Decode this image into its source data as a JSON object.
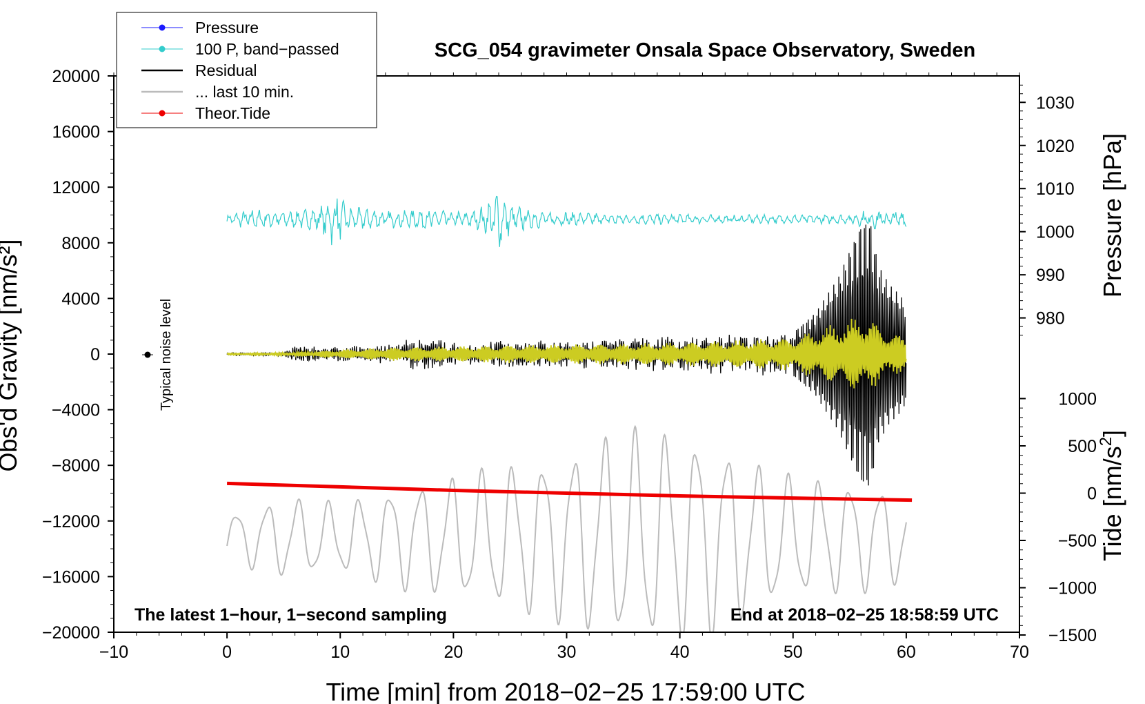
{
  "chart_data": {
    "type": "line",
    "title": "SCG_054 gravimeter Onsala Space Observatory, Sweden",
    "xlabel": "Time [min] from 2018−02−25 17:59:00 UTC",
    "ylabel_left": "Obs'd Gravity [nm/s²]",
    "ylabel_right_pressure": "Pressure [hPa]",
    "ylabel_right_tide_text": "Tide [nm/s",
    "ylabel_right_tide_sup": "2",
    "ylabel_right_tide_close": "]",
    "xlim": [
      -10,
      70
    ],
    "ylim": [
      -20000,
      20000
    ],
    "x_ticks": [
      {
        "value": -10,
        "label": "−10"
      },
      {
        "value": 0,
        "label": "0"
      },
      {
        "value": 10,
        "label": "10"
      },
      {
        "value": 20,
        "label": "20"
      },
      {
        "value": 30,
        "label": "30"
      },
      {
        "value": 40,
        "label": "40"
      },
      {
        "value": 50,
        "label": "50"
      },
      {
        "value": 60,
        "label": "60"
      },
      {
        "value": 70,
        "label": "70"
      }
    ],
    "y_ticks": [
      {
        "value": 20000,
        "label": "20000"
      },
      {
        "value": 16000,
        "label": "16000"
      },
      {
        "value": 12000,
        "label": "12000"
      },
      {
        "value": 8000,
        "label": "8000"
      },
      {
        "value": 4000,
        "label": "4000"
      },
      {
        "value": 0,
        "label": "0"
      },
      {
        "value": -4000,
        "label": "−4000"
      },
      {
        "value": -8000,
        "label": "−8000"
      },
      {
        "value": -12000,
        "label": "−12000"
      },
      {
        "value": -16000,
        "label": "−16000"
      },
      {
        "value": -20000,
        "label": "−20000"
      }
    ],
    "pressure_axis": {
      "note": "right axis, hPa; 1000 hPa aligned with ~8800 nm/s2, 10 hPa = ~3100 nm/s2",
      "ticks": [
        {
          "value": 1030,
          "label": "1030"
        },
        {
          "value": 1020,
          "label": "1020"
        },
        {
          "value": 1010,
          "label": "1010"
        },
        {
          "value": 1000,
          "label": "1000"
        },
        {
          "value": 990,
          "label": "990"
        },
        {
          "value": 980,
          "label": "980"
        }
      ]
    },
    "tide_axis": {
      "note": "right axis, nm/s2; 0 aligned with ~-10000 nm/s2, 500 = ~3400 nm/s2",
      "ticks": [
        {
          "value": 1000,
          "label": "1000"
        },
        {
          "value": 500,
          "label": "500"
        },
        {
          "value": 0,
          "label": "0"
        },
        {
          "value": -500,
          "label": "−500"
        },
        {
          "value": -1000,
          "label": "−1000"
        },
        {
          "value": -1500,
          "label": "−1500"
        }
      ]
    },
    "legend": {
      "position": "top-left",
      "entries": [
        {
          "label": "Pressure",
          "color": "#1a1aff",
          "marker": "dot"
        },
        {
          "label": "100 P, band−passed",
          "color": "#33cccc",
          "marker": "dot"
        },
        {
          "label": "Residual",
          "color": "#000000",
          "marker": "line"
        },
        {
          "label": "... last 10 min.",
          "color": "#bbbbbb",
          "marker": "line"
        },
        {
          "label": "Theor.Tide",
          "color": "#ee0000",
          "marker": "dot"
        }
      ]
    },
    "annotations": {
      "noise_label": "Typical noise level",
      "noise_point": {
        "x": -7,
        "y": 0
      },
      "bottom_left": "The latest 1−hour, 1−second sampling",
      "bottom_right": "End at 2018−02−25 18:58:59 UTC"
    },
    "series": [
      {
        "name": "100 P, band-passed",
        "color": "#33cccc",
        "approximate": true,
        "baseline_nms2": 9700,
        "envelope_x": [
          0,
          2,
          4,
          6,
          8,
          9,
          9.5,
          10,
          11,
          14,
          16,
          18,
          20,
          22,
          23,
          24,
          25,
          28,
          35,
          45,
          55,
          57,
          60
        ],
        "envelope_amp": [
          350,
          800,
          700,
          650,
          900,
          1600,
          2600,
          1600,
          900,
          700,
          650,
          900,
          550,
          700,
          1300,
          2500,
          1100,
          600,
          450,
          320,
          380,
          800,
          850
        ]
      },
      {
        "name": "Residual",
        "color": "#000000",
        "approximate": true,
        "envelope_x": [
          0,
          5,
          6,
          10,
          15,
          16,
          17,
          20,
          25,
          30,
          35,
          40,
          45,
          50,
          52,
          54,
          55,
          56,
          56.8,
          57.5,
          58.5,
          59.5,
          60
        ],
        "envelope_amp": [
          100,
          120,
          600,
          550,
          700,
          1200,
          1300,
          900,
          1000,
          1000,
          1200,
          1300,
          1500,
          1600,
          3000,
          5500,
          7500,
          9500,
          9800,
          6500,
          5000,
          4200,
          3500
        ]
      },
      {
        "name": "Residual (yellow overlay)",
        "color": "#cccc22",
        "approximate": true,
        "envelope_x": [
          0,
          5,
          10,
          15,
          20,
          25,
          30,
          35,
          40,
          45,
          50,
          52,
          55,
          56,
          57,
          58,
          60
        ],
        "envelope_amp": [
          50,
          100,
          300,
          500,
          550,
          650,
          700,
          750,
          850,
          1000,
          1200,
          1800,
          2500,
          2900,
          2500,
          1800,
          1200
        ]
      },
      {
        "name": "... last 10 min.",
        "color": "#bbbbbb",
        "approximate": true,
        "baseline_nms2": -13200,
        "envelope_x": [
          0,
          5,
          10,
          15,
          20,
          25,
          30,
          33,
          35,
          38,
          42,
          44,
          47,
          50,
          55,
          60
        ],
        "envelope_amp": [
          1800,
          3000,
          2600,
          3800,
          4500,
          5500,
          6400,
          7500,
          8000,
          8000,
          7800,
          7000,
          5500,
          4500,
          4200,
          3500
        ]
      },
      {
        "name": "Theor.Tide",
        "color": "#ee0000",
        "x": [
          0,
          10,
          20,
          30,
          40,
          50,
          60.5
        ],
        "y": [
          -9300,
          -9550,
          -9800,
          -10000,
          -10200,
          -10350,
          -10500
        ]
      }
    ]
  }
}
